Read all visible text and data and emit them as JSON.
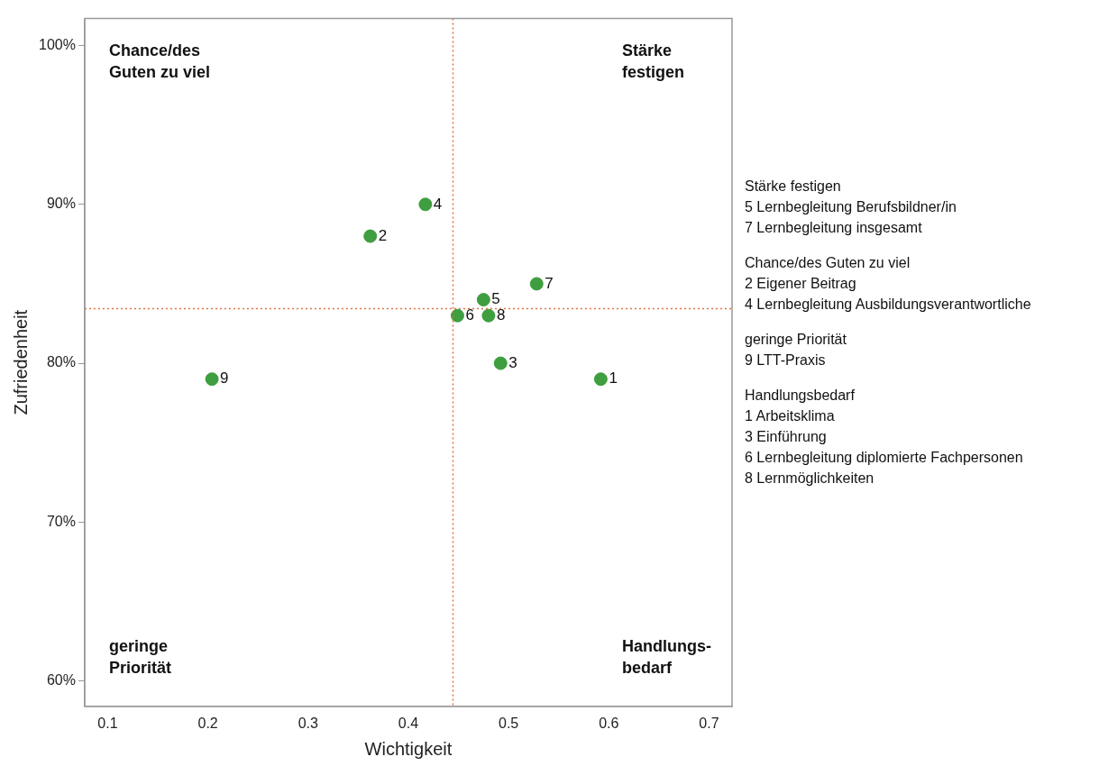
{
  "chart_data": {
    "type": "scatter",
    "xlabel": "Wichtigkeit",
    "ylabel": "Zufriedenheit",
    "x": [
      0.592,
      0.362,
      0.492,
      0.417,
      0.475,
      0.449,
      0.528,
      0.48,
      0.204
    ],
    "series": [
      {
        "color": "#3f9e3f",
        "values": [
          79,
          88,
          80,
          90,
          84,
          83,
          85,
          83,
          79
        ]
      }
    ],
    "xlim": [
      0.077,
      0.723
    ],
    "xticks": [
      0.1,
      0.2,
      0.3,
      0.4,
      0.5,
      0.6,
      0.7
    ],
    "ylim": [
      58.4,
      101.7
    ],
    "yticks": [
      {
        "value": 60,
        "label": "60%"
      },
      {
        "value": 70,
        "label": "70%"
      },
      {
        "value": 80,
        "label": "80%"
      },
      {
        "value": 90,
        "label": "90%"
      },
      {
        "value": 100,
        "label": "100%"
      }
    ],
    "ref_lines": [
      {
        "axis": "x",
        "value": 0.4445,
        "color": "#e0703f",
        "line_style": "dotted"
      },
      {
        "axis": "y",
        "value": 83.44,
        "color": "#e0703f",
        "line_style": "dotted"
      }
    ],
    "marker": "circle",
    "grid": false,
    "legend": false,
    "annotations": [
      "Chance/des\nGuten zu viel",
      "Stärke\nfestigen",
      "geringe\nPriorität",
      "Handlungs-\nbedarf",
      "Stärke festigen\n5 Lernbegleitung Berufsbildner/in\n7 Lernbegleitung insgesamt",
      "Chance/des Guten zu viel\n2 Eigener Beitrag\n4 Lernbegleitung Ausbildungsverantwortliche",
      "geringe Priorität\n9 LTT-Praxis",
      "Handlungsbedarf\n1 Arbeitsklima\n3 Einführung\n6 Lernbegleitung diplomierte Fachpersonen\n8 Lernmöglichkeiten",
      {
        "text": "1",
        "x": 0.592,
        "y": 79
      },
      {
        "text": "2",
        "x": 0.362,
        "y": 88
      },
      {
        "text": "3",
        "x": 0.492,
        "y": 80
      },
      {
        "text": "4",
        "x": 0.417,
        "y": 90
      },
      {
        "text": "5",
        "x": 0.475,
        "y": 84
      },
      {
        "text": "6",
        "x": 0.449,
        "y": 83
      },
      {
        "text": "7",
        "x": 0.528,
        "y": 85
      },
      {
        "text": "8",
        "x": 0.48,
        "y": 83
      },
      {
        "text": "9",
        "x": 0.204,
        "y": 79
      }
    ]
  }
}
